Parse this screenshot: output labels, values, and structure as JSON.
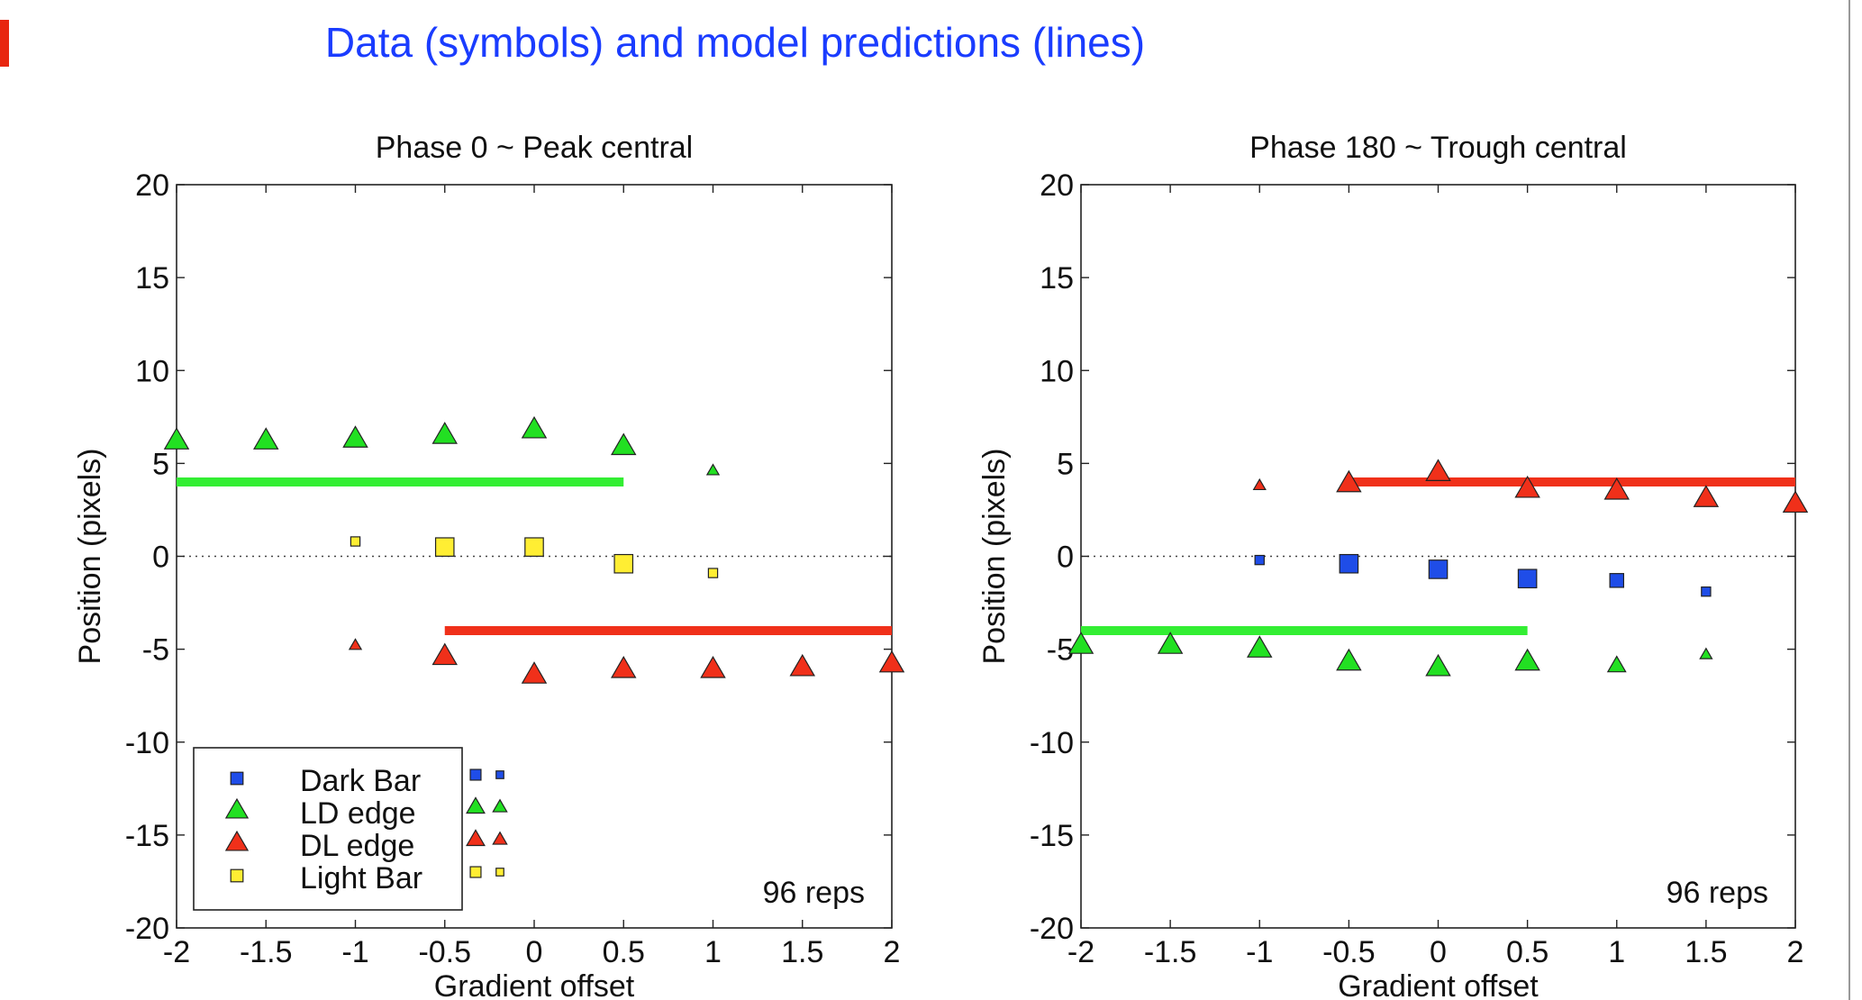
{
  "title": "Data (symbols) and model predictions (lines)",
  "colors": {
    "title": "#1a3cff",
    "accent_mark": "#e8260f",
    "dark_bar": "#1f4de8",
    "ld_edge": "#22e022",
    "dl_edge": "#f0301a",
    "light_bar": "#ffee33",
    "ld_line": "#33ee33",
    "dl_line": "#f0301a"
  },
  "legend": {
    "items": [
      {
        "label": "Dark Bar",
        "marker": "square",
        "color": "#1f4de8"
      },
      {
        "label": "LD edge",
        "marker": "triangle",
        "color": "#22e022"
      },
      {
        "label": "DL edge",
        "marker": "triangle",
        "color": "#f0301a"
      },
      {
        "label": "Light Bar",
        "marker": "square",
        "color": "#ffee33"
      }
    ]
  },
  "chart_data": [
    {
      "type": "scatter",
      "title": "Phase 0 ~ Peak central",
      "xlabel": "Gradient offset",
      "ylabel": "Position (pixels)",
      "xlim": [
        -2,
        2
      ],
      "ylim": [
        -20,
        20
      ],
      "xticks": [
        "-2",
        "-1.5",
        "-1",
        "-0.5",
        "0",
        "0.5",
        "1",
        "1.5",
        "2"
      ],
      "yticks": [
        "20",
        "15",
        "10",
        "5",
        "0",
        "-5",
        "-10",
        "-15",
        "-20"
      ],
      "annotation": "96 reps",
      "legend_position": "bottom-left",
      "series": [
        {
          "name": "Dark Bar",
          "marker": "square",
          "color": "#1f4de8",
          "points": []
        },
        {
          "name": "LD edge",
          "marker": "triangle",
          "color": "#22e022",
          "points": [
            {
              "x": -2,
              "y": 6.2,
              "size": "large"
            },
            {
              "x": -1.5,
              "y": 6.2,
              "size": "large"
            },
            {
              "x": -1,
              "y": 6.3,
              "size": "large"
            },
            {
              "x": -0.5,
              "y": 6.5,
              "size": "large"
            },
            {
              "x": 0,
              "y": 6.8,
              "size": "large"
            },
            {
              "x": 0.5,
              "y": 5.9,
              "size": "large"
            },
            {
              "x": 1,
              "y": 4.6,
              "size": "small"
            }
          ]
        },
        {
          "name": "DL edge",
          "marker": "triangle",
          "color": "#f0301a",
          "points": [
            {
              "x": -1,
              "y": -4.8,
              "size": "small"
            },
            {
              "x": -0.5,
              "y": -5.4,
              "size": "large"
            },
            {
              "x": 0,
              "y": -6.4,
              "size": "large"
            },
            {
              "x": 0.5,
              "y": -6.1,
              "size": "large"
            },
            {
              "x": 1,
              "y": -6.1,
              "size": "large"
            },
            {
              "x": 1.5,
              "y": -6.0,
              "size": "large"
            },
            {
              "x": 2,
              "y": -5.8,
              "size": "large"
            }
          ]
        },
        {
          "name": "Light Bar",
          "marker": "square",
          "color": "#ffee33",
          "points": [
            {
              "x": -1,
              "y": 0.8,
              "size": "small"
            },
            {
              "x": -0.5,
              "y": 0.5,
              "size": "large"
            },
            {
              "x": 0,
              "y": 0.5,
              "size": "large"
            },
            {
              "x": 0.5,
              "y": -0.4,
              "size": "large"
            },
            {
              "x": 1,
              "y": -0.9,
              "size": "small"
            }
          ]
        }
      ],
      "model_lines": [
        {
          "name": "LD edge",
          "color": "#33ee33",
          "x": [
            -2,
            0.5
          ],
          "y": 4
        },
        {
          "name": "DL edge",
          "color": "#f0301a",
          "x": [
            -0.5,
            2
          ],
          "y": -4
        }
      ]
    },
    {
      "type": "scatter",
      "title": "Phase 180 ~ Trough central",
      "xlabel": "Gradient offset",
      "ylabel": "Position (pixels)",
      "xlim": [
        -2,
        2
      ],
      "ylim": [
        -20,
        20
      ],
      "xticks": [
        "-2",
        "-1.5",
        "-1",
        "-0.5",
        "0",
        "0.5",
        "1",
        "1.5",
        "2"
      ],
      "yticks": [
        "20",
        "15",
        "10",
        "5",
        "0",
        "-5",
        "-10",
        "-15",
        "-20"
      ],
      "annotation": "96 reps",
      "series": [
        {
          "name": "Dark Bar",
          "marker": "square",
          "color": "#1f4de8",
          "points": [
            {
              "x": -1,
              "y": -0.2,
              "size": "small"
            },
            {
              "x": -0.5,
              "y": -0.4,
              "size": "large"
            },
            {
              "x": 0,
              "y": -0.7,
              "size": "large"
            },
            {
              "x": 0.5,
              "y": -1.2,
              "size": "large"
            },
            {
              "x": 1,
              "y": -1.3,
              "size": "medium"
            },
            {
              "x": 1.5,
              "y": -1.9,
              "size": "small"
            }
          ]
        },
        {
          "name": "LD edge",
          "marker": "triangle",
          "color": "#22e022",
          "points": [
            {
              "x": -2,
              "y": -4.8,
              "size": "large"
            },
            {
              "x": -1.5,
              "y": -4.8,
              "size": "large"
            },
            {
              "x": -1,
              "y": -5.0,
              "size": "large"
            },
            {
              "x": -0.5,
              "y": -5.7,
              "size": "large"
            },
            {
              "x": 0,
              "y": -6.0,
              "size": "large"
            },
            {
              "x": 0.5,
              "y": -5.7,
              "size": "large"
            },
            {
              "x": 1,
              "y": -5.9,
              "size": "medium"
            },
            {
              "x": 1.5,
              "y": -5.3,
              "size": "small"
            }
          ]
        },
        {
          "name": "DL edge",
          "marker": "triangle",
          "color": "#f0301a",
          "points": [
            {
              "x": -1,
              "y": 3.8,
              "size": "small"
            },
            {
              "x": -0.5,
              "y": 3.9,
              "size": "large"
            },
            {
              "x": 0,
              "y": 4.5,
              "size": "large"
            },
            {
              "x": 0.5,
              "y": 3.6,
              "size": "large"
            },
            {
              "x": 1,
              "y": 3.5,
              "size": "large"
            },
            {
              "x": 1.5,
              "y": 3.1,
              "size": "large"
            },
            {
              "x": 2,
              "y": 2.8,
              "size": "large"
            }
          ]
        },
        {
          "name": "Light Bar",
          "marker": "square",
          "color": "#ffee33",
          "points": []
        }
      ],
      "model_lines": [
        {
          "name": "DL edge",
          "color": "#f0301a",
          "x": [
            -0.5,
            2
          ],
          "y": 4
        },
        {
          "name": "LD edge",
          "color": "#33ee33",
          "x": [
            -2,
            0.5
          ],
          "y": -4
        }
      ]
    }
  ]
}
